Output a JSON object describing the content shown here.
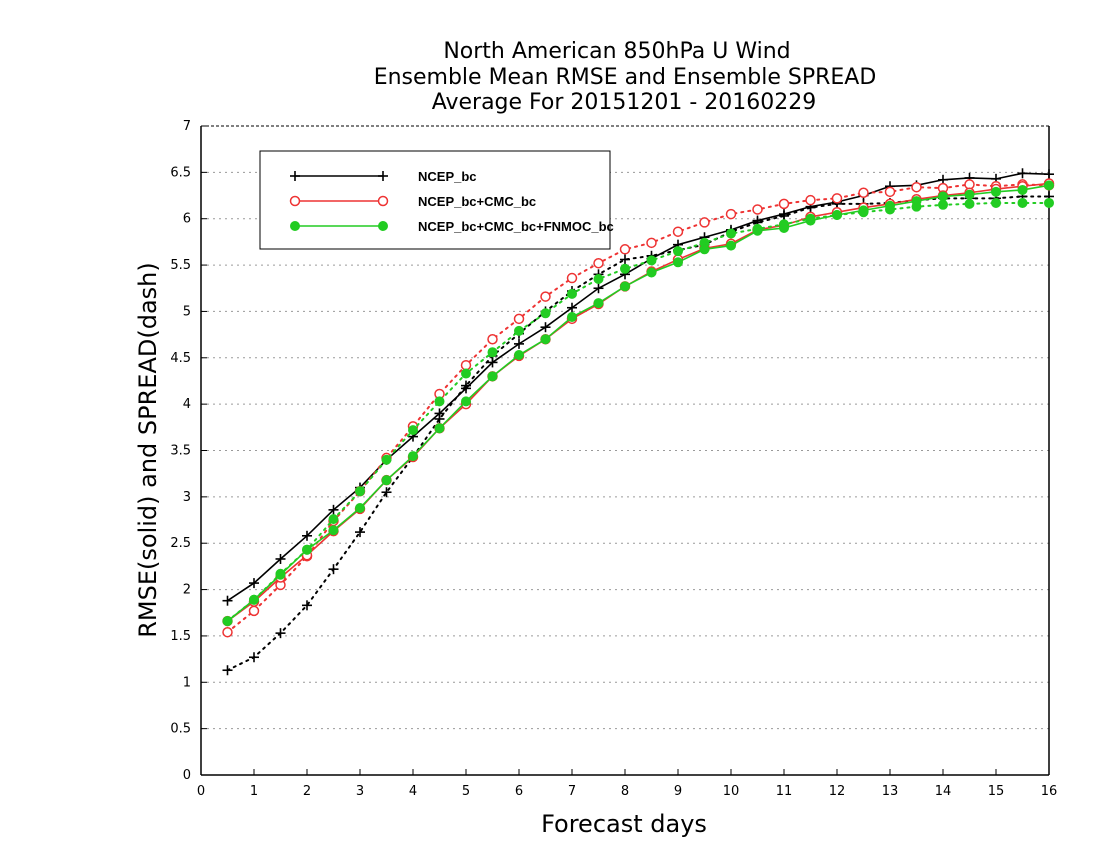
{
  "chart_data": {
    "type": "line",
    "title": [
      "North American 850hPa U Wind",
      "Ensemble Mean RMSE and Ensemble SPREAD",
      "Average For 20151201 - 20160229"
    ],
    "xlabel": "Forecast days",
    "ylabel": "RMSE(solid) and SPREAD(dash)",
    "xlim": [
      0,
      16
    ],
    "ylim": [
      0,
      7
    ],
    "x_ticks": [
      "0",
      "1",
      "2",
      "3",
      "4",
      "5",
      "6",
      "7",
      "8",
      "9",
      "10",
      "11",
      "12",
      "13",
      "14",
      "15",
      "16"
    ],
    "y_ticks": [
      "0",
      "0.5",
      "1",
      "1.5",
      "2",
      "2.5",
      "3",
      "3.5",
      "4",
      "4.5",
      "5",
      "5.5",
      "6",
      "6.5",
      "7"
    ],
    "grid": "horizontal dotted",
    "legend_position": "top-left",
    "x": [
      0.5,
      1,
      1.5,
      2,
      2.5,
      3,
      3.5,
      4,
      4.5,
      5,
      5.5,
      6,
      6.5,
      7,
      7.5,
      8,
      8.5,
      9,
      9.5,
      10,
      10.5,
      11,
      11.5,
      12,
      12.5,
      13,
      13.5,
      14,
      14.5,
      15,
      15.5,
      16
    ],
    "series": [
      {
        "name": "NCEP_bc",
        "color": "#000000",
        "marker": "plus",
        "rmse": [
          1.88,
          2.07,
          2.33,
          2.58,
          2.86,
          3.1,
          3.4,
          3.65,
          3.9,
          4.17,
          4.45,
          4.65,
          4.83,
          5.04,
          5.25,
          5.4,
          5.57,
          5.72,
          5.8,
          5.88,
          5.98,
          6.05,
          6.13,
          6.18,
          6.25,
          6.35,
          6.36,
          6.42,
          6.44,
          6.43,
          6.49,
          6.48
        ],
        "spread": [
          1.13,
          1.27,
          1.53,
          1.83,
          2.22,
          2.62,
          3.05,
          3.43,
          3.84,
          4.2,
          4.52,
          4.76,
          5.0,
          5.22,
          5.4,
          5.56,
          5.6,
          5.66,
          5.72,
          5.86,
          5.96,
          6.03,
          6.12,
          6.16,
          6.16,
          6.17,
          6.2,
          6.22,
          6.22,
          6.22,
          6.24,
          6.24
        ]
      },
      {
        "name": "NCEP_bc+CMC_bc",
        "color": "#ee3333",
        "marker": "open-circle",
        "rmse": [
          1.66,
          1.87,
          2.13,
          2.37,
          2.63,
          2.87,
          3.18,
          3.43,
          3.74,
          4.0,
          4.3,
          4.52,
          4.7,
          4.92,
          5.08,
          5.27,
          5.43,
          5.56,
          5.68,
          5.73,
          5.88,
          5.93,
          6.02,
          6.07,
          6.12,
          6.16,
          6.21,
          6.25,
          6.28,
          6.32,
          6.35,
          6.38
        ],
        "spread": [
          1.54,
          1.77,
          2.05,
          2.36,
          2.74,
          3.06,
          3.42,
          3.76,
          4.11,
          4.42,
          4.7,
          4.92,
          5.16,
          5.36,
          5.52,
          5.67,
          5.74,
          5.86,
          5.96,
          6.05,
          6.1,
          6.16,
          6.2,
          6.22,
          6.28,
          6.29,
          6.34,
          6.33,
          6.37,
          6.35,
          6.37,
          6.36
        ]
      },
      {
        "name": "NCEP_bc+CMC_bc+FNMOC_bc",
        "color": "#22cc22",
        "marker": "filled-circle",
        "rmse": [
          1.66,
          1.89,
          2.16,
          2.43,
          2.64,
          2.88,
          3.18,
          3.44,
          3.74,
          4.03,
          4.3,
          4.53,
          4.7,
          4.94,
          5.09,
          5.27,
          5.42,
          5.53,
          5.67,
          5.71,
          5.87,
          5.9,
          5.98,
          6.04,
          6.09,
          6.14,
          6.19,
          6.24,
          6.26,
          6.29,
          6.31,
          6.36
        ],
        "spread": [
          1.66,
          1.89,
          2.17,
          2.43,
          2.76,
          3.06,
          3.4,
          3.72,
          4.03,
          4.33,
          4.56,
          4.79,
          4.98,
          5.19,
          5.35,
          5.46,
          5.55,
          5.65,
          5.74,
          5.84,
          5.89,
          5.94,
          6.0,
          6.04,
          6.07,
          6.1,
          6.13,
          6.15,
          6.16,
          6.17,
          6.17,
          6.17
        ]
      }
    ]
  }
}
